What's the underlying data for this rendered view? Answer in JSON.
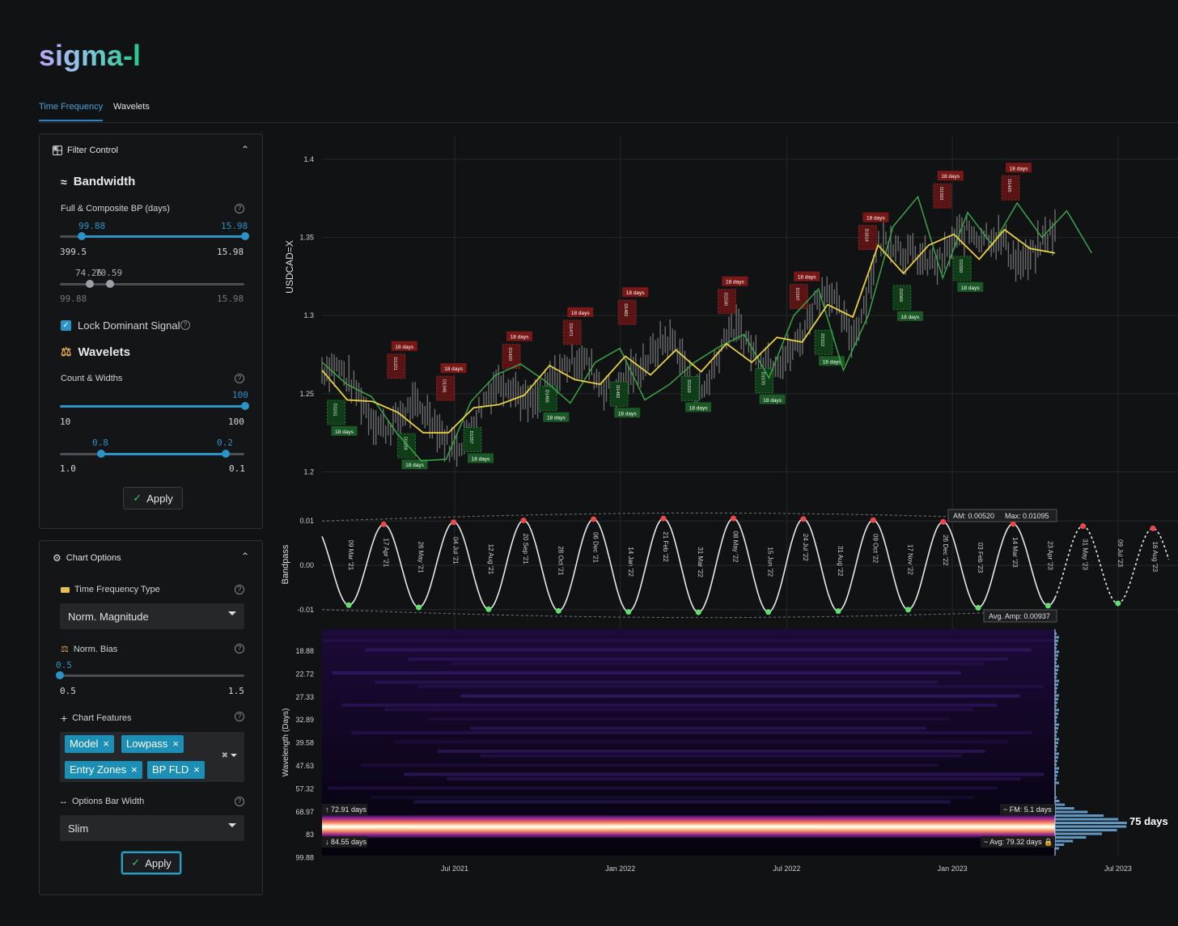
{
  "app": {
    "logo": "sigma-l"
  },
  "tabs": [
    {
      "label": "Time Frequency"
    },
    {
      "label": "Wavelets"
    }
  ],
  "filter_control": {
    "title": "Filter Control",
    "bandwidth": {
      "title": "Bandwidth",
      "label": "Full & Composite BP (days)",
      "range1": {
        "low_label": "99.88",
        "high_label": "15.98",
        "min": "399.5",
        "max": "15.98",
        "low_frac": 0.12,
        "high_frac": 1.0
      },
      "range2": {
        "low_label": "74.26",
        "high_label": "70.59",
        "min": "99.88",
        "max": "15.98",
        "low_frac": 0.16,
        "high_frac": 0.27
      }
    },
    "lock_dominant": {
      "label": "Lock Dominant Signal",
      "checked": true
    },
    "wavelets": {
      "title": "Wavelets",
      "label": "Count & Widths",
      "count": {
        "value_label": "100",
        "min": "10",
        "max": "100",
        "frac": 1.0
      },
      "widths": {
        "low_label": "0.8",
        "high_label": "0.2",
        "min": "1.0",
        "max": "0.1",
        "low_frac": 0.22,
        "high_frac": 0.89
      }
    },
    "apply_label": "Apply"
  },
  "chart_options": {
    "title": "Chart Options",
    "tf_type": {
      "label": "Time Frequency Type",
      "value": "Norm. Magnitude"
    },
    "norm_bias": {
      "label": "Norm. Bias",
      "value_label": "0.5",
      "min": "0.5",
      "max": "1.5",
      "frac": 0.0
    },
    "chart_features": {
      "label": "Chart Features",
      "tags": [
        "Model",
        "Lowpass",
        "Entry Zones",
        "BP FLD"
      ]
    },
    "bar_width": {
      "label": "Options Bar Width",
      "value": "Slim"
    },
    "apply_label": "Apply"
  },
  "chart_data": [
    {
      "type": "line",
      "ylabel": "USDCAD=X",
      "yticks": [
        "1.4",
        "1.35",
        "1.3",
        "1.25",
        "1.2"
      ],
      "ylim": [
        1.18,
        1.415
      ],
      "cycle_label": "18 days",
      "peaks": [
        {
          "code": "D1221",
          "t": 0.098
        },
        {
          "code": "D1346",
          "t": 0.165
        },
        {
          "code": "D1420",
          "t": 0.255
        },
        {
          "code": "D1471",
          "t": 0.338
        },
        {
          "code": "D1482",
          "t": 0.413
        },
        {
          "code": "D1530",
          "t": 0.549
        },
        {
          "code": "D1597",
          "t": 0.647
        },
        {
          "code": "D1614",
          "t": 0.741
        },
        {
          "code": "D1593",
          "t": 0.843
        },
        {
          "code": "D1420",
          "t": 0.936
        }
      ],
      "troughs": [
        {
          "code": "D1151",
          "t": 0.016
        },
        {
          "code": "D1209",
          "t": 0.112
        },
        {
          "code": "D1357",
          "t": 0.202
        },
        {
          "code": "D1465",
          "t": 0.305
        },
        {
          "code": "D1482",
          "t": 0.402
        },
        {
          "code": "D1510",
          "t": 0.499
        },
        {
          "code": "D1570",
          "t": 0.6
        },
        {
          "code": "D1512",
          "t": 0.681
        },
        {
          "code": "D1569",
          "t": 0.788
        },
        {
          "code": "D1550",
          "t": 0.87
        }
      ],
      "lowpass": [
        1.265,
        1.246,
        1.245,
        1.238,
        1.225,
        1.225,
        1.241,
        1.243,
        1.249,
        1.268,
        1.259,
        1.256,
        1.274,
        1.262,
        1.278,
        1.264,
        1.282,
        1.27,
        1.286,
        1.283,
        1.307,
        1.299,
        1.345,
        1.327,
        1.345,
        1.352,
        1.336,
        1.355,
        1.343,
        1.34
      ],
      "model": [
        1.27,
        1.256,
        1.248,
        1.225,
        1.207,
        1.208,
        1.245,
        1.262,
        1.269,
        1.258,
        1.244,
        1.27,
        1.279,
        1.246,
        1.256,
        1.27,
        1.28,
        1.288,
        1.26,
        1.3,
        1.317,
        1.265,
        1.3,
        1.357,
        1.376,
        1.324,
        1.366,
        1.345,
        1.372,
        1.35,
        1.367,
        1.34
      ]
    },
    {
      "type": "line",
      "ylabel": "Bandpass",
      "yticks": [
        "0.01",
        "0.00",
        "-0.01"
      ],
      "ylim": [
        -0.0115,
        0.0115
      ],
      "peak_dates": [
        "17 Apr '21",
        "04 Jul '21",
        "20 Sep '21",
        "06 Dec '21",
        "21 Feb '22",
        "08 May '22",
        "24 Jul '22",
        "09 Oct '22",
        "26 Dec '22",
        "14 Mar '23",
        "31 May '23",
        "16 Aug '23"
      ],
      "trough_dates": [
        "09 Mar '21",
        "26 May '21",
        "12 Aug '21",
        "28 Oct '21",
        "14 Jan '22",
        "31 Mar '22",
        "15 Jun '22",
        "31 Aug '22",
        "17 Nov '22",
        "03 Feb '23",
        "23 Apr '23",
        "09 Jul '23"
      ],
      "am_label": "AM: 0.00520",
      "max_label": "Max: 0.01095",
      "avg_amp_label": "Avg. Amp: 0.00937"
    },
    {
      "type": "heatmap",
      "ylabel": "Wavelength (Days)",
      "yticks": [
        "18.88",
        "22.72",
        "27.33",
        "32.89",
        "39.58",
        "47.63",
        "57.32",
        "68.97",
        "83",
        "99.88"
      ],
      "xticks": [
        "Jul 2021",
        "Jan 2022",
        "Jul 2022",
        "Jan 2023",
        "Jul 2023"
      ],
      "top_band_label": "72.91 days",
      "bottom_band_label": "84.55 days",
      "fm_label": "FM: 5.1 days",
      "avg_label": "Avg: 79.32 days",
      "dominant_label": "75 days"
    }
  ]
}
